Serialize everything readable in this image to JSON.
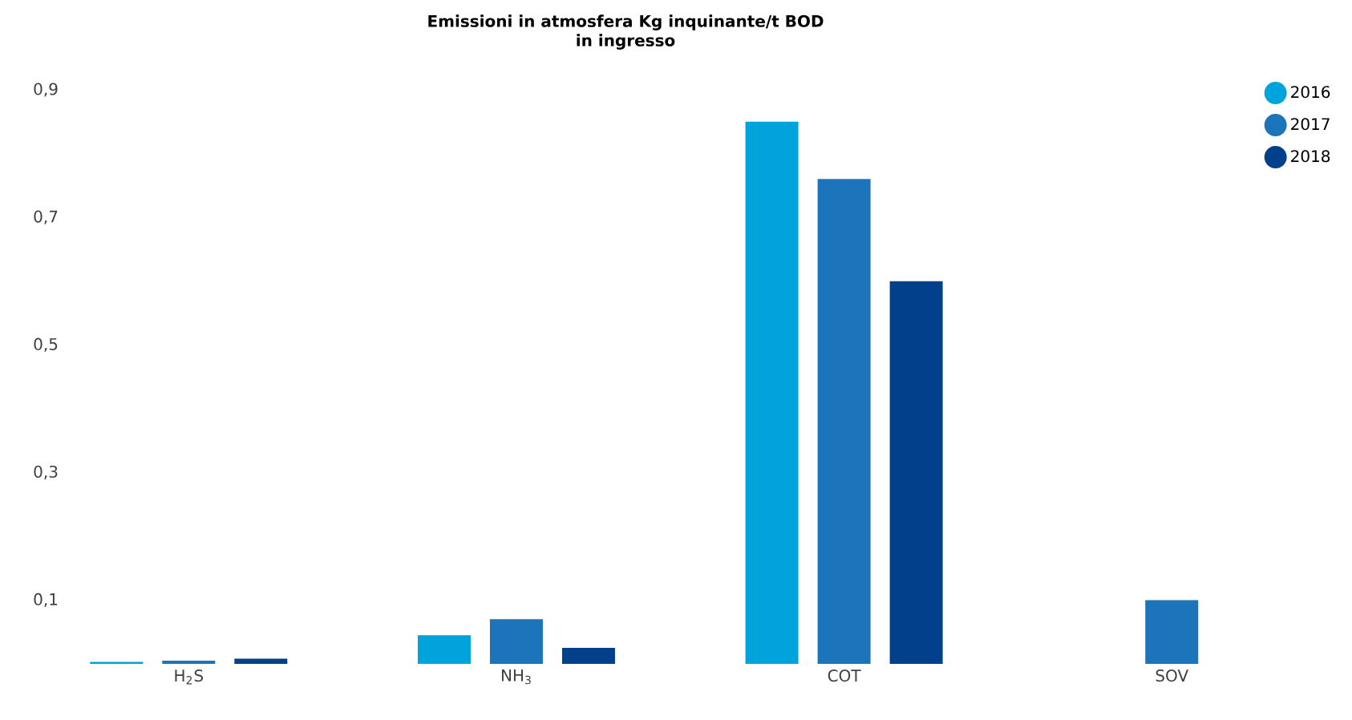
{
  "chart_data": {
    "type": "bar",
    "title": "Emissioni in atmosfera Kg inquinante/t BOD\nin ingresso",
    "categories": [
      "H$_{2}$S",
      "NH$_{3}$",
      "COT",
      "SOV"
    ],
    "series": [
      {
        "name": "2016",
        "color": "#00a3dc",
        "values": [
          0.003,
          0.045,
          0.85,
          null
        ]
      },
      {
        "name": "2017",
        "color": "#1c75bb",
        "values": [
          0.005,
          0.07,
          0.76,
          0.1
        ]
      },
      {
        "name": "2018",
        "color": "#02408c",
        "values": [
          0.008,
          0.025,
          0.6,
          null
        ]
      }
    ],
    "ylim": [
      0,
      0.9
    ],
    "yticks": [
      {
        "value": 0.1,
        "label": "0,1"
      },
      {
        "value": 0.3,
        "label": "0,3"
      },
      {
        "value": 0.5,
        "label": "0,5"
      },
      {
        "value": 0.7,
        "label": "0,7"
      },
      {
        "value": 0.9,
        "label": "0,9"
      }
    ],
    "grid": false,
    "legend": "top right"
  }
}
